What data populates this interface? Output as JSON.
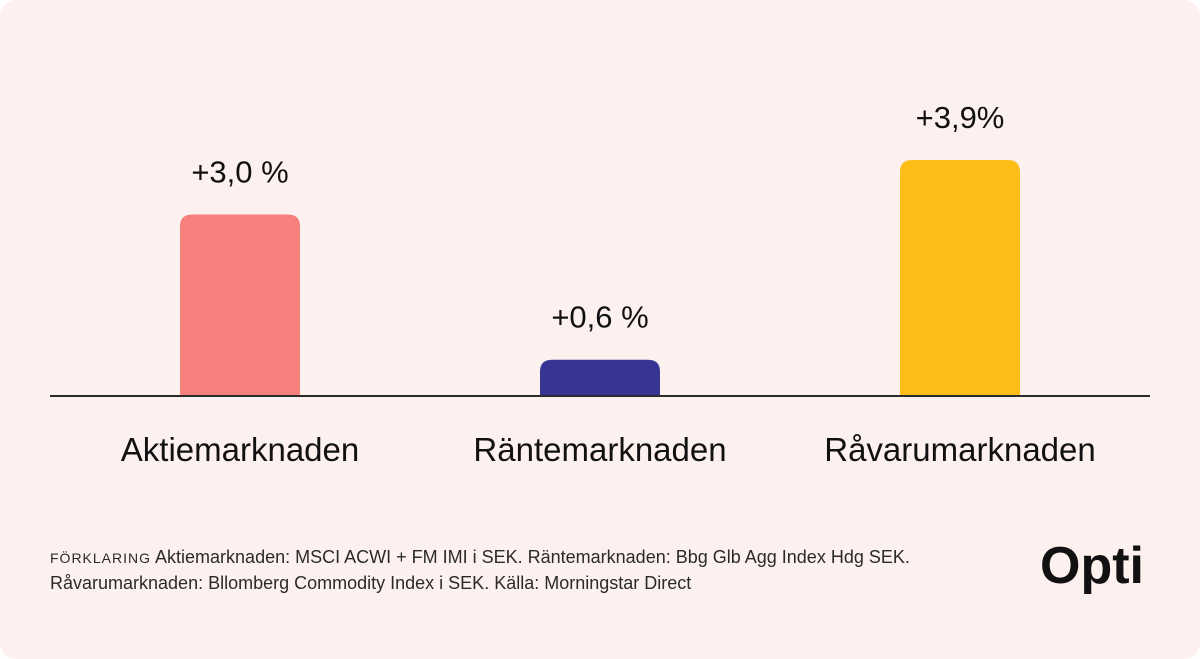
{
  "chart_data": {
    "type": "bar",
    "title": "",
    "xlabel": "",
    "ylabel": "",
    "ylim": [
      0,
      4.2
    ],
    "categories": [
      "Aktiemarknaden",
      "Räntemarknaden",
      "Råvarumarknaden"
    ],
    "values": [
      3.0,
      0.6,
      3.9
    ],
    "value_labels": [
      "+3,0 %",
      "+0,6 %",
      "+3,9%"
    ],
    "colors": [
      "#f6807b",
      "#363593",
      "#fdbd17"
    ],
    "grid": false,
    "legend": "none"
  },
  "footnote": {
    "prefix": "FÖRKLARING",
    "line1": "Aktiemarknaden: MSCI ACWI + FM IMI i SEK. Räntemarknaden: Bbg Glb Agg Index Hdg SEK.",
    "line2": "Råvarumarknaden: Bllomberg Commodity Index i SEK. Källa: Morningstar Direct"
  },
  "brand": {
    "logo_text": "Opti"
  }
}
